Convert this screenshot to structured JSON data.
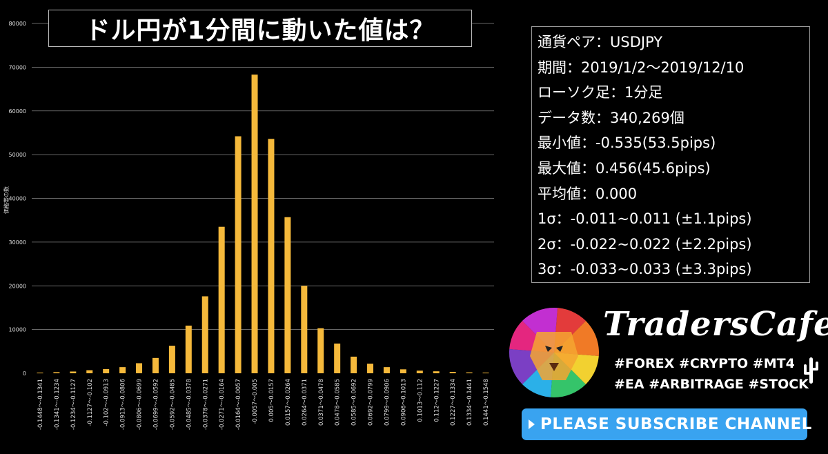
{
  "title": "ドル円が1分間に動いた値は？",
  "chart_data": {
    "type": "bar",
    "ylabel": "価格帯の数",
    "ylim": [
      0,
      80000
    ],
    "yticks": [
      0,
      10000,
      20000,
      30000,
      40000,
      50000,
      60000,
      70000,
      80000
    ],
    "grid": true,
    "bar_color": "#f5b93b",
    "categories": [
      "-0.1448～-0.1341",
      "-0.1341～-0.1234",
      "-0.1234～-0.1127",
      "-0.1127～-0.102",
      "-0.102～-0.0913",
      "-0.0913～-0.0806",
      "-0.0806～-0.0699",
      "-0.0699～-0.0592",
      "-0.0592～-0.0485",
      "-0.0485～-0.0378",
      "-0.0378～-0.0271",
      "-0.0271～-0.0164",
      "-0.0164～-0.0057",
      "-0.0057～0.005",
      "0.005～0.0157",
      "0.0157～0.0264",
      "0.0264～0.0371",
      "0.0371～0.0478",
      "0.0478～0.0585",
      "0.0585～0.0692",
      "0.0692～0.0799",
      "0.0799～0.0906",
      "0.0906～0.1013",
      "0.1013～0.112",
      "0.112～0.1227",
      "0.1227～0.1334",
      "0.1334～0.1441",
      "0.1441～0.1548"
    ],
    "values": [
      150,
      250,
      400,
      700,
      950,
      1400,
      2300,
      3500,
      6300,
      10900,
      17600,
      33500,
      54200,
      68300,
      53600,
      35700,
      20000,
      10300,
      6800,
      3800,
      2200,
      1400,
      900,
      600,
      450,
      300,
      200,
      150
    ]
  },
  "info": [
    "通貨ペア：USDJPY",
    "期間：2019/1/2～2019/12/10",
    "ローソク足：1分足",
    "データ数：340,269個",
    "最小値：-0.535(53.5pips)",
    "最大値：0.456(45.6pips)",
    "平均値：0.000",
    "1σ：-0.011~0.011 (±1.1pips)",
    "2σ：-0.022~0.022 (±2.2pips)",
    "3σ：-0.033~0.033 (±3.3pips)"
  ],
  "brand": {
    "name": "TradersCafe",
    "tags_line1": "#FOREX #CRYPTO #MT4",
    "tags_line2": "#EA #ARBITRAGE #STOCK",
    "logo_icon": "lion-logo-icon",
    "cactus_icon": "cactus-icon"
  },
  "subscribe": {
    "label": "PLEASE SUBSCRIBE CHANNEL",
    "color": "#39a3f0"
  }
}
